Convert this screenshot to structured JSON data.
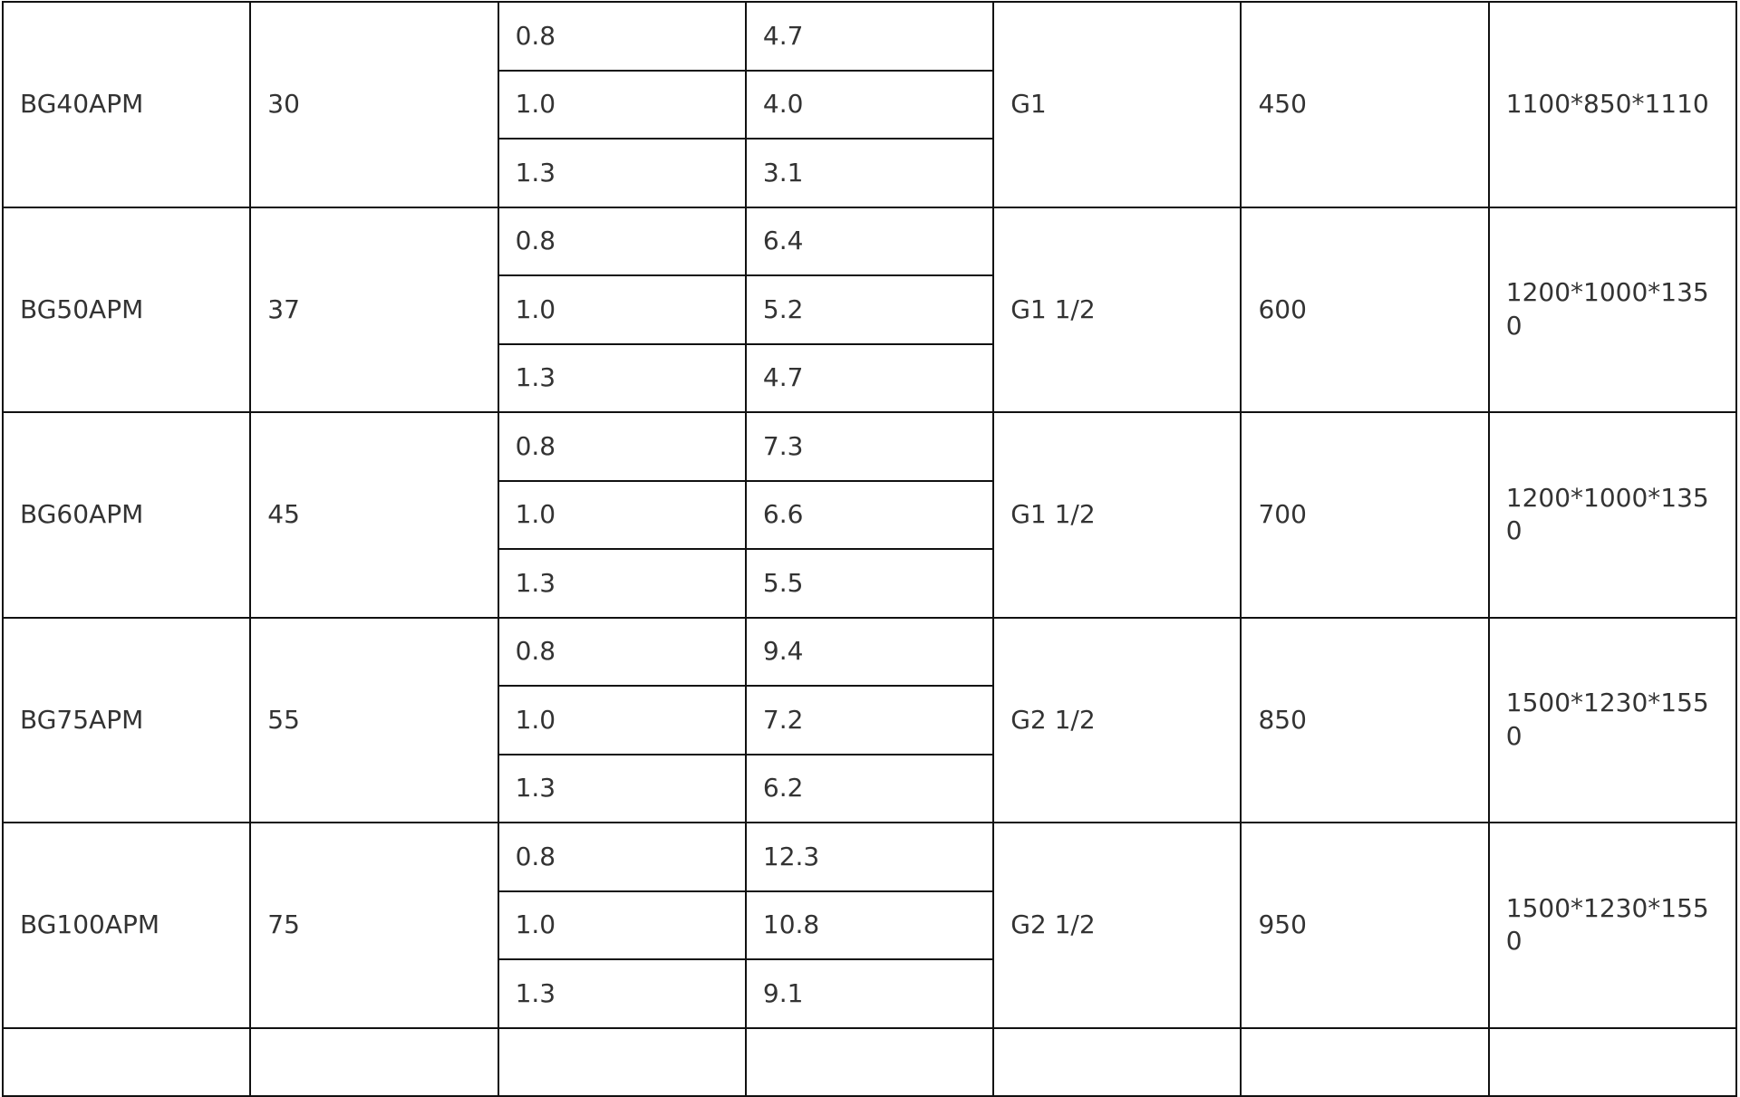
{
  "table": {
    "rows": [
      {
        "model": "BG40APM",
        "power": "30",
        "sub": [
          {
            "pressure": "0.8",
            "flow": "4.7"
          },
          {
            "pressure": "1.0",
            "flow": "4.0"
          },
          {
            "pressure": "1.3",
            "flow": "3.1"
          }
        ],
        "outlet": "G1",
        "weight": "450",
        "dimensions": "1100*850*1110"
      },
      {
        "model": "BG50APM",
        "power": "37",
        "sub": [
          {
            "pressure": "0.8",
            "flow": "6.4"
          },
          {
            "pressure": "1.0",
            "flow": "5.2"
          },
          {
            "pressure": "1.3",
            "flow": "4.7"
          }
        ],
        "outlet": "G1  1/2",
        "weight": "600",
        "dimensions": "1200*1000*1350"
      },
      {
        "model": "BG60APM",
        "power": "45",
        "sub": [
          {
            "pressure": "0.8",
            "flow": "7.3"
          },
          {
            "pressure": "1.0",
            "flow": "6.6"
          },
          {
            "pressure": "1.3",
            "flow": "5.5"
          }
        ],
        "outlet": "G1  1/2",
        "weight": "700",
        "dimensions": "1200*1000*1350"
      },
      {
        "model": "BG75APM",
        "power": "55",
        "sub": [
          {
            "pressure": "0.8",
            "flow": "9.4"
          },
          {
            "pressure": "1.0",
            "flow": "7.2"
          },
          {
            "pressure": "1.3",
            "flow": "6.2"
          }
        ],
        "outlet": "G2  1/2",
        "weight": "850",
        "dimensions": "1500*1230*1550"
      },
      {
        "model": "BG100APM",
        "power": "75",
        "sub": [
          {
            "pressure": "0.8",
            "flow": "12.3"
          },
          {
            "pressure": "1.0",
            "flow": "10.8"
          },
          {
            "pressure": "1.3",
            "flow": "9.1"
          }
        ],
        "outlet": "G2  1/2",
        "weight": "950",
        "dimensions": "1500*1230*1550"
      }
    ]
  }
}
